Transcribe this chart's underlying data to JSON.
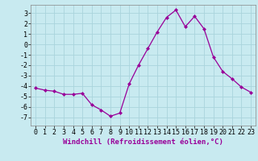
{
  "x": [
    0,
    1,
    2,
    3,
    4,
    5,
    6,
    7,
    8,
    9,
    10,
    11,
    12,
    13,
    14,
    15,
    16,
    17,
    18,
    19,
    20,
    21,
    22,
    23
  ],
  "y": [
    -4.2,
    -4.4,
    -4.5,
    -4.8,
    -4.8,
    -4.7,
    -5.8,
    -6.3,
    -6.9,
    -6.6,
    -3.8,
    -2.0,
    -0.4,
    1.2,
    2.6,
    3.3,
    1.7,
    2.7,
    1.5,
    -1.2,
    -2.6,
    -3.3,
    -4.1,
    -4.6
  ],
  "line_color": "#990099",
  "marker": "D",
  "markersize": 2.0,
  "linewidth": 0.9,
  "xlabel": "Windchill (Refroidissement éolien,°C)",
  "yticks": [
    -7,
    -6,
    -5,
    -4,
    -3,
    -2,
    -1,
    0,
    1,
    2,
    3
  ],
  "ylabel_ticks": [
    "-7",
    "-6",
    "-5",
    "-4",
    "-3",
    "-2",
    "-1",
    "0",
    "1",
    "2",
    "3"
  ],
  "ylim": [
    -7.8,
    3.8
  ],
  "xlim": [
    -0.5,
    23.5
  ],
  "bg_color": "#c8eaf0",
  "grid_color": "#aad4dc",
  "xlabel_fontsize": 6.5,
  "tick_fontsize": 6.0,
  "spine_color": "#888888"
}
